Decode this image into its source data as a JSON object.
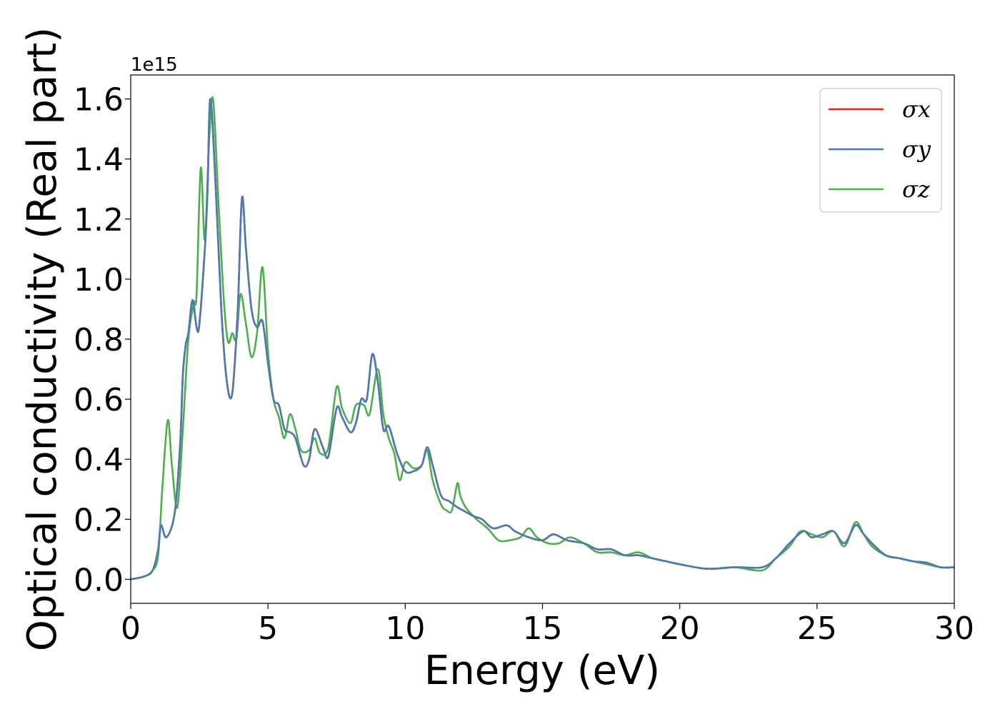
{
  "chart_data": {
    "type": "line",
    "xlabel": "Energy (eV)",
    "ylabel": "Optical conductivity (Real part)",
    "y_offset_label": "1e15",
    "xlim": [
      0,
      30
    ],
    "ylim": [
      -0.08,
      1.68
    ],
    "x_ticks": [
      0,
      5,
      10,
      15,
      20,
      25,
      30
    ],
    "x_tick_labels": [
      "0",
      "5",
      "10",
      "15",
      "20",
      "25",
      "30"
    ],
    "y_ticks": [
      0.0,
      0.2,
      0.4,
      0.6,
      0.8,
      1.0,
      1.2,
      1.4,
      1.6
    ],
    "y_tick_labels": [
      "0.0",
      "0.2",
      "0.4",
      "0.6",
      "0.8",
      "1.0",
      "1.2",
      "1.4",
      "1.6"
    ],
    "grid": false,
    "legend_position": "top-right",
    "series": [
      {
        "name": "σx",
        "color": "#e41a1c",
        "points": [
          [
            0,
            0
          ],
          [
            0.5,
            0.01
          ],
          [
            0.8,
            0.03
          ],
          [
            1.0,
            0.1
          ],
          [
            1.1,
            0.18
          ],
          [
            1.3,
            0.14
          ],
          [
            1.6,
            0.22
          ],
          [
            1.8,
            0.45
          ],
          [
            1.9,
            0.68
          ],
          [
            2.0,
            0.78
          ],
          [
            2.1,
            0.82
          ],
          [
            2.25,
            0.93
          ],
          [
            2.4,
            0.84
          ],
          [
            2.5,
            0.85
          ],
          [
            2.7,
            1.1
          ],
          [
            2.8,
            1.3
          ],
          [
            2.9,
            1.6
          ],
          [
            3.1,
            1.3
          ],
          [
            3.3,
            0.9
          ],
          [
            3.5,
            0.66
          ],
          [
            3.7,
            0.62
          ],
          [
            3.9,
            0.9
          ],
          [
            4.05,
            1.27
          ],
          [
            4.2,
            1.1
          ],
          [
            4.4,
            0.9
          ],
          [
            4.6,
            0.84
          ],
          [
            4.8,
            0.86
          ],
          [
            5.0,
            0.72
          ],
          [
            5.2,
            0.6
          ],
          [
            5.4,
            0.58
          ],
          [
            5.6,
            0.5
          ],
          [
            5.8,
            0.49
          ],
          [
            6.0,
            0.47
          ],
          [
            6.3,
            0.38
          ],
          [
            6.5,
            0.4
          ],
          [
            6.7,
            0.5
          ],
          [
            7.0,
            0.44
          ],
          [
            7.2,
            0.41
          ],
          [
            7.5,
            0.57
          ],
          [
            7.7,
            0.54
          ],
          [
            8.0,
            0.49
          ],
          [
            8.2,
            0.52
          ],
          [
            8.4,
            0.6
          ],
          [
            8.6,
            0.6
          ],
          [
            8.8,
            0.75
          ],
          [
            9.0,
            0.66
          ],
          [
            9.2,
            0.5
          ],
          [
            9.4,
            0.51
          ],
          [
            9.7,
            0.42
          ],
          [
            10.0,
            0.36
          ],
          [
            10.3,
            0.36
          ],
          [
            10.6,
            0.38
          ],
          [
            10.8,
            0.44
          ],
          [
            11.0,
            0.38
          ],
          [
            11.3,
            0.28
          ],
          [
            11.6,
            0.26
          ],
          [
            11.9,
            0.24
          ],
          [
            12.1,
            0.23
          ],
          [
            12.5,
            0.21
          ],
          [
            12.8,
            0.2
          ],
          [
            13.2,
            0.17
          ],
          [
            13.7,
            0.18
          ],
          [
            14.0,
            0.16
          ],
          [
            14.5,
            0.14
          ],
          [
            15.0,
            0.13
          ],
          [
            15.4,
            0.15
          ],
          [
            15.9,
            0.13
          ],
          [
            16.5,
            0.12
          ],
          [
            17.0,
            0.1
          ],
          [
            17.5,
            0.1
          ],
          [
            18.0,
            0.08
          ],
          [
            18.5,
            0.08
          ],
          [
            19.0,
            0.07
          ],
          [
            19.5,
            0.06
          ],
          [
            20.0,
            0.05
          ],
          [
            21.0,
            0.035
          ],
          [
            22.0,
            0.04
          ],
          [
            23.0,
            0.04
          ],
          [
            23.5,
            0.07
          ],
          [
            24.0,
            0.12
          ],
          [
            24.5,
            0.16
          ],
          [
            24.8,
            0.14
          ],
          [
            25.2,
            0.15
          ],
          [
            25.6,
            0.16
          ],
          [
            26.0,
            0.12
          ],
          [
            26.4,
            0.18
          ],
          [
            26.7,
            0.15
          ],
          [
            27.0,
            0.12
          ],
          [
            27.5,
            0.08
          ],
          [
            28.0,
            0.07
          ],
          [
            28.5,
            0.06
          ],
          [
            29.0,
            0.055
          ],
          [
            29.5,
            0.04
          ],
          [
            30.0,
            0.04
          ]
        ]
      },
      {
        "name": "σy",
        "color": "#4a7bb7",
        "points": [
          [
            0,
            0
          ],
          [
            0.5,
            0.01
          ],
          [
            0.8,
            0.03
          ],
          [
            1.0,
            0.1
          ],
          [
            1.1,
            0.18
          ],
          [
            1.3,
            0.14
          ],
          [
            1.6,
            0.22
          ],
          [
            1.8,
            0.45
          ],
          [
            1.9,
            0.68
          ],
          [
            2.0,
            0.78
          ],
          [
            2.1,
            0.82
          ],
          [
            2.25,
            0.93
          ],
          [
            2.4,
            0.84
          ],
          [
            2.5,
            0.85
          ],
          [
            2.7,
            1.1
          ],
          [
            2.8,
            1.3
          ],
          [
            2.9,
            1.6
          ],
          [
            3.1,
            1.3
          ],
          [
            3.3,
            0.9
          ],
          [
            3.5,
            0.66
          ],
          [
            3.7,
            0.62
          ],
          [
            3.9,
            0.9
          ],
          [
            4.05,
            1.27
          ],
          [
            4.2,
            1.1
          ],
          [
            4.4,
            0.9
          ],
          [
            4.6,
            0.84
          ],
          [
            4.8,
            0.86
          ],
          [
            5.0,
            0.72
          ],
          [
            5.2,
            0.6
          ],
          [
            5.4,
            0.58
          ],
          [
            5.6,
            0.5
          ],
          [
            5.8,
            0.49
          ],
          [
            6.0,
            0.47
          ],
          [
            6.3,
            0.38
          ],
          [
            6.5,
            0.4
          ],
          [
            6.7,
            0.5
          ],
          [
            7.0,
            0.44
          ],
          [
            7.2,
            0.41
          ],
          [
            7.5,
            0.57
          ],
          [
            7.7,
            0.54
          ],
          [
            8.0,
            0.49
          ],
          [
            8.2,
            0.52
          ],
          [
            8.4,
            0.6
          ],
          [
            8.6,
            0.6
          ],
          [
            8.8,
            0.75
          ],
          [
            9.0,
            0.66
          ],
          [
            9.2,
            0.5
          ],
          [
            9.4,
            0.51
          ],
          [
            9.7,
            0.42
          ],
          [
            10.0,
            0.36
          ],
          [
            10.3,
            0.36
          ],
          [
            10.6,
            0.38
          ],
          [
            10.8,
            0.44
          ],
          [
            11.0,
            0.38
          ],
          [
            11.3,
            0.28
          ],
          [
            11.6,
            0.26
          ],
          [
            11.9,
            0.24
          ],
          [
            12.1,
            0.23
          ],
          [
            12.5,
            0.21
          ],
          [
            12.8,
            0.2
          ],
          [
            13.2,
            0.17
          ],
          [
            13.7,
            0.18
          ],
          [
            14.0,
            0.16
          ],
          [
            14.5,
            0.14
          ],
          [
            15.0,
            0.13
          ],
          [
            15.4,
            0.15
          ],
          [
            15.9,
            0.13
          ],
          [
            16.5,
            0.12
          ],
          [
            17.0,
            0.1
          ],
          [
            17.5,
            0.1
          ],
          [
            18.0,
            0.08
          ],
          [
            18.5,
            0.08
          ],
          [
            19.0,
            0.07
          ],
          [
            19.5,
            0.06
          ],
          [
            20.0,
            0.05
          ],
          [
            21.0,
            0.035
          ],
          [
            22.0,
            0.04
          ],
          [
            23.0,
            0.04
          ],
          [
            23.5,
            0.07
          ],
          [
            24.0,
            0.12
          ],
          [
            24.5,
            0.16
          ],
          [
            24.8,
            0.14
          ],
          [
            25.2,
            0.15
          ],
          [
            25.6,
            0.16
          ],
          [
            26.0,
            0.12
          ],
          [
            26.4,
            0.18
          ],
          [
            26.7,
            0.15
          ],
          [
            27.0,
            0.12
          ],
          [
            27.5,
            0.08
          ],
          [
            28.0,
            0.07
          ],
          [
            28.5,
            0.06
          ],
          [
            29.0,
            0.055
          ],
          [
            29.5,
            0.04
          ],
          [
            30.0,
            0.04
          ]
        ]
      },
      {
        "name": "σz",
        "color": "#4daf4a",
        "points": [
          [
            0,
            0
          ],
          [
            0.5,
            0.01
          ],
          [
            0.8,
            0.03
          ],
          [
            1.0,
            0.08
          ],
          [
            1.15,
            0.3
          ],
          [
            1.35,
            0.53
          ],
          [
            1.5,
            0.38
          ],
          [
            1.7,
            0.24
          ],
          [
            1.9,
            0.5
          ],
          [
            2.1,
            0.8
          ],
          [
            2.3,
            0.92
          ],
          [
            2.4,
            0.95
          ],
          [
            2.55,
            1.37
          ],
          [
            2.7,
            1.13
          ],
          [
            2.85,
            1.45
          ],
          [
            3.0,
            1.6
          ],
          [
            3.2,
            1.25
          ],
          [
            3.4,
            0.92
          ],
          [
            3.55,
            0.79
          ],
          [
            3.7,
            0.82
          ],
          [
            3.85,
            0.8
          ],
          [
            4.0,
            0.95
          ],
          [
            4.2,
            0.85
          ],
          [
            4.4,
            0.74
          ],
          [
            4.6,
            0.82
          ],
          [
            4.8,
            1.04
          ],
          [
            5.0,
            0.76
          ],
          [
            5.2,
            0.6
          ],
          [
            5.4,
            0.54
          ],
          [
            5.6,
            0.47
          ],
          [
            5.8,
            0.55
          ],
          [
            6.0,
            0.5
          ],
          [
            6.2,
            0.43
          ],
          [
            6.5,
            0.43
          ],
          [
            6.7,
            0.47
          ],
          [
            6.9,
            0.42
          ],
          [
            7.2,
            0.44
          ],
          [
            7.5,
            0.64
          ],
          [
            7.7,
            0.57
          ],
          [
            8.0,
            0.52
          ],
          [
            8.2,
            0.58
          ],
          [
            8.5,
            0.58
          ],
          [
            8.7,
            0.55
          ],
          [
            9.0,
            0.7
          ],
          [
            9.2,
            0.55
          ],
          [
            9.4,
            0.47
          ],
          [
            9.6,
            0.42
          ],
          [
            9.8,
            0.33
          ],
          [
            10.0,
            0.39
          ],
          [
            10.3,
            0.37
          ],
          [
            10.6,
            0.38
          ],
          [
            10.8,
            0.43
          ],
          [
            11.0,
            0.33
          ],
          [
            11.3,
            0.25
          ],
          [
            11.5,
            0.23
          ],
          [
            11.7,
            0.23
          ],
          [
            11.9,
            0.32
          ],
          [
            12.0,
            0.28
          ],
          [
            12.2,
            0.24
          ],
          [
            12.6,
            0.2
          ],
          [
            13.0,
            0.17
          ],
          [
            13.4,
            0.13
          ],
          [
            13.8,
            0.13
          ],
          [
            14.2,
            0.14
          ],
          [
            14.5,
            0.17
          ],
          [
            14.8,
            0.14
          ],
          [
            15.2,
            0.12
          ],
          [
            15.6,
            0.12
          ],
          [
            16.0,
            0.14
          ],
          [
            16.5,
            0.12
          ],
          [
            17.0,
            0.09
          ],
          [
            17.5,
            0.09
          ],
          [
            18.0,
            0.08
          ],
          [
            18.5,
            0.09
          ],
          [
            19.0,
            0.07
          ],
          [
            19.5,
            0.06
          ],
          [
            20.0,
            0.05
          ],
          [
            21.0,
            0.035
          ],
          [
            22.0,
            0.04
          ],
          [
            23.0,
            0.03
          ],
          [
            23.5,
            0.07
          ],
          [
            24.0,
            0.11
          ],
          [
            24.4,
            0.16
          ],
          [
            24.8,
            0.15
          ],
          [
            25.2,
            0.14
          ],
          [
            25.6,
            0.16
          ],
          [
            26.0,
            0.11
          ],
          [
            26.4,
            0.19
          ],
          [
            26.7,
            0.15
          ],
          [
            27.0,
            0.11
          ],
          [
            27.5,
            0.08
          ],
          [
            28.0,
            0.07
          ],
          [
            28.5,
            0.06
          ],
          [
            29.0,
            0.05
          ],
          [
            29.5,
            0.04
          ],
          [
            30.0,
            0.04
          ]
        ]
      }
    ]
  }
}
